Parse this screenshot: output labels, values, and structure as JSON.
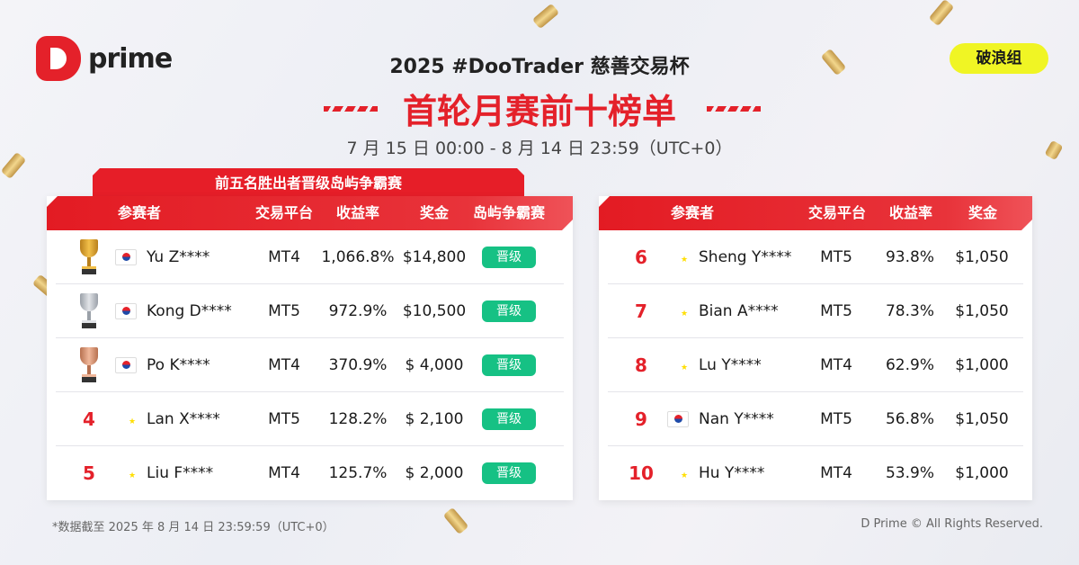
{
  "brand": {
    "logo_text": "prime"
  },
  "header": {
    "title": "2025 #DooTrader 慈善交易杯",
    "subtitle": "首轮月赛前十榜单",
    "dates": "7 月 15 日 00:00 - 8 月 14 日 23:59（UTC+0）",
    "group": "破浪组"
  },
  "colors": {
    "accent": "#e4212a",
    "badge": "#16c184",
    "group": "#f0f524"
  },
  "left": {
    "banner": "前五名胜出者晋级岛屿争霸赛",
    "headers": [
      "参赛者",
      "交易平台",
      "收益率",
      "奖金",
      "岛屿争霸赛"
    ],
    "rows": [
      {
        "rank": "1",
        "icon": "gold-trophy-icon",
        "flag": "kr",
        "name": "Yu Z****",
        "platform": "MT4",
        "yield": "1,066.8%",
        "prize": "$14,800",
        "status": "晋级"
      },
      {
        "rank": "2",
        "icon": "silver-trophy-icon",
        "flag": "kr",
        "name": "Kong D****",
        "platform": "MT5",
        "yield": "972.9%",
        "prize": "$10,500",
        "status": "晋级"
      },
      {
        "rank": "3",
        "icon": "bronze-trophy-icon",
        "flag": "kr",
        "name": "Po K****",
        "platform": "MT4",
        "yield": "370.9%",
        "prize": "$ 4,000",
        "status": "晋级"
      },
      {
        "rank": "4",
        "flag": "cn",
        "name": "Lan X****",
        "platform": "MT5",
        "yield": "128.2%",
        "prize": "$ 2,100",
        "status": "晋级"
      },
      {
        "rank": "5",
        "flag": "cn",
        "name": "Liu F****",
        "platform": "MT4",
        "yield": "125.7%",
        "prize": "$ 2,000",
        "status": "晋级"
      }
    ]
  },
  "right": {
    "headers": [
      "参赛者",
      "交易平台",
      "收益率",
      "奖金"
    ],
    "rows": [
      {
        "rank": "6",
        "flag": "cn",
        "name": "Sheng Y****",
        "platform": "MT5",
        "yield": "93.8%",
        "prize": "$1,050"
      },
      {
        "rank": "7",
        "flag": "cn",
        "name": "Bian A****",
        "platform": "MT5",
        "yield": "78.3%",
        "prize": "$1,050"
      },
      {
        "rank": "8",
        "flag": "cn",
        "name": "Lu Y****",
        "platform": "MT4",
        "yield": "62.9%",
        "prize": "$1,000"
      },
      {
        "rank": "9",
        "flag": "kr",
        "name": "Nan Y****",
        "platform": "MT5",
        "yield": "56.8%",
        "prize": "$1,050"
      },
      {
        "rank": "10",
        "flag": "cn",
        "name": "Hu Y****",
        "platform": "MT4",
        "yield": "53.9%",
        "prize": "$1,000"
      }
    ]
  },
  "footer": {
    "note": "*数据截至 2025 年 8 月 14 日 23:59:59（UTC+0）",
    "copyright": "D Prime © All Rights Reserved."
  }
}
